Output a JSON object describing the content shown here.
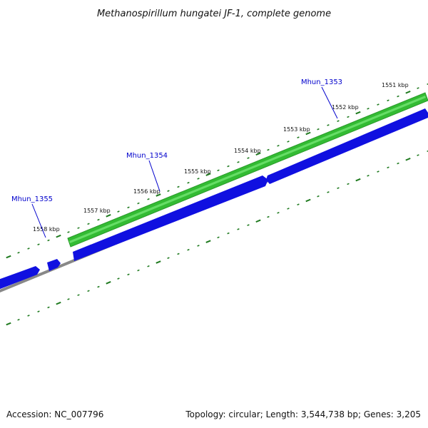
{
  "title": "Methanospirillum hungatei JF-1, complete genome",
  "footer": {
    "accession": "Accession: NC_007796",
    "summary": "Topology: circular; Length: 3,544,738 bp; Genes: 3,205"
  },
  "colors": {
    "background": "#ffffff",
    "forward_gene": "#33bb33",
    "reverse_gene": "#1010e0",
    "backbone": "#888888",
    "tick": "#1f7a1f",
    "gene_label": "#0000cc"
  },
  "scale": {
    "unit": "kbp",
    "labels": [
      "1551 kbp",
      "1552 kbp",
      "1553 kbp",
      "1554 kbp",
      "1555 kbp",
      "1556 kbp",
      "1557 kbp",
      "1558 kbp"
    ]
  },
  "genes": [
    {
      "id": "Mhun_1353",
      "strand": "+",
      "label": "Mhun_1353"
    },
    {
      "id": "Mhun_1353_rev",
      "strand": "-",
      "label": ""
    },
    {
      "id": "Mhun_1354",
      "strand": "-",
      "label": "Mhun_1354"
    },
    {
      "id": "Mhun_1355",
      "strand": "-",
      "label": "Mhun_1355"
    },
    {
      "id": "Mhun_1356",
      "strand": "-",
      "label": ""
    }
  ]
}
